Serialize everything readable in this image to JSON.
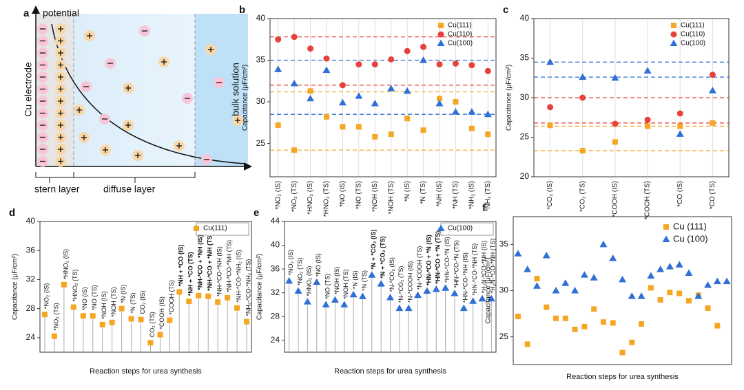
{
  "diagram": {
    "panel": "a",
    "labels": {
      "potential": "potential",
      "electrode": "Cu electrode",
      "stern": "stern layer",
      "diffuse": "diffuse layer",
      "bulk": "bulk solution"
    }
  },
  "chart_data": [
    {
      "type": "scatter",
      "panel": "b",
      "ylabel": "Capacitance (μF/cm²)",
      "ylim": [
        21,
        40
      ],
      "yticks": [
        25,
        30,
        35,
        40
      ],
      "xgrid": true,
      "legend": "upper right",
      "categories": [
        "*NO₂ (IS)",
        "*NO₂ (TS)",
        "*HNO₂ (IS)",
        "*HNO₂ (TS)",
        "*NO (IS)",
        "*NO (TS)",
        "*NOH (IS)",
        "*NOH (TS)",
        "*N (IS)",
        "*N (TS)",
        "*NH (IS)",
        "*NH (TS)",
        "*NH₂ (IS)",
        "*NH₂ (TS)"
      ],
      "series": [
        {
          "name": "Cu(111)",
          "color": "#f5a623",
          "marker": "square",
          "values": [
            27.2,
            24.2,
            31.3,
            28.2,
            27.0,
            27.0,
            25.8,
            26.1,
            28.0,
            26.6,
            30.4,
            30.0,
            26.8,
            26.1
          ]
        },
        {
          "name": "Cu(110)",
          "color": "#e8413c",
          "marker": "circle",
          "values": [
            37.5,
            37.8,
            36.4,
            35.2,
            32.0,
            34.5,
            34.5,
            35.1,
            36.1,
            36.6,
            34.5,
            34.6,
            34.4,
            33.7
          ]
        },
        {
          "name": "Cu(100)",
          "color": "#2f6fd6",
          "marker": "triangle",
          "values": [
            33.9,
            32.2,
            30.4,
            33.8,
            29.9,
            30.7,
            29.8,
            31.6,
            31.3,
            35.0,
            29.8,
            28.8,
            28.8,
            28.5
          ]
        }
      ],
      "reference_lines": [
        {
          "value": 37.8,
          "color": "#e8413c"
        },
        {
          "value": 35.0,
          "color": "#2f6fd6"
        },
        {
          "value": 32.0,
          "color": "#e8413c"
        },
        {
          "value": 31.2,
          "color": "#f5a623"
        },
        {
          "value": 28.5,
          "color": "#2f6fd6"
        },
        {
          "value": 24.2,
          "color": "#f5a623"
        }
      ]
    },
    {
      "type": "scatter",
      "panel": "c",
      "ylabel": "Capacitance (μF/cm²)",
      "ylim": [
        20,
        40
      ],
      "yticks": [
        20,
        25,
        30,
        35,
        40
      ],
      "xgrid": true,
      "legend": "upper right",
      "categories": [
        "*CO₂ (IS)",
        "*CO₂ (TS)",
        "*COOH (IS)",
        "*COOH (TS)",
        "*CO (IS)",
        "*CO (TS)"
      ],
      "series": [
        {
          "name": "Cu(111)",
          "color": "#f5a623",
          "marker": "square",
          "values": [
            26.5,
            23.3,
            24.4,
            26.4,
            26.4,
            26.8
          ]
        },
        {
          "name": "Cu(110)",
          "color": "#e8413c",
          "marker": "circle",
          "values": [
            28.8,
            30.0,
            26.7,
            27.2,
            28.0,
            32.9
          ]
        },
        {
          "name": "Cu(100)",
          "color": "#2f6fd6",
          "marker": "triangle",
          "values": [
            34.5,
            32.6,
            32.5,
            33.4,
            25.4,
            30.9
          ]
        }
      ],
      "reference_lines": [
        {
          "value": 34.5,
          "color": "#2f6fd6"
        },
        {
          "value": 32.6,
          "color": "#2f6fd6"
        },
        {
          "value": 30.0,
          "color": "#e8413c"
        },
        {
          "value": 26.8,
          "color": "#e8413c"
        },
        {
          "value": 26.4,
          "color": "#f5a623"
        },
        {
          "value": 23.3,
          "color": "#f5a623"
        }
      ]
    },
    {
      "type": "stem",
      "panel": "d",
      "ylabel": "Capacitance (μF/cm²)",
      "xlabel": "Reaction steps for urea synthesis",
      "ylim": [
        22,
        40
      ],
      "yticks": [
        24,
        28,
        32,
        36,
        40
      ],
      "legend": "upper right",
      "emphasized": [
        14,
        15,
        16,
        17
      ],
      "categories": [
        "*NO₂ (IS)",
        "*NO₂ (TS)",
        "*HNO₂ (IS)",
        "*HNO₂ (TS)",
        "*NO (IS)",
        "*NO (TS)",
        "*NOH (IS)",
        "*NOH (TS)",
        "*N (IS)",
        "*N (TS)",
        "CO₂ (IS)",
        "CO₂ (TS)",
        "*COOH (IS)",
        "*COOH (TS)",
        "*NH + *CO (IS)",
        "*NH + *CO (TS)",
        "*NH-*CO + *NH (IS)",
        "*NH-*CO + *NH (TS)",
        "*NH-*CO-*NH (IS)",
        "*NH-*CO-*NH (TS)",
        "*NH-*CO-*NH₂ (IS)",
        "*NH₂-*CO-*NH₂ (TS)"
      ],
      "series": [
        {
          "name": "Cu(111)",
          "color": "#f5a623",
          "marker": "square",
          "values": [
            27.2,
            24.2,
            31.3,
            28.2,
            27.0,
            27.0,
            25.8,
            26.1,
            28.0,
            26.6,
            26.5,
            23.3,
            24.4,
            26.4,
            30.3,
            29.0,
            29.8,
            29.7,
            28.9,
            29.5,
            28.1,
            26.2
          ]
        }
      ]
    },
    {
      "type": "stem",
      "panel": "e",
      "ylabel": "Capacitance (μF/cm²)",
      "xlabel": "Reaction steps for urea synthesis",
      "ylim": [
        22,
        44
      ],
      "yticks": [
        24,
        28,
        32,
        36,
        40,
        44
      ],
      "legend": "upper right",
      "emphasized": [
        9,
        10,
        15,
        16
      ],
      "categories": [
        "*NO₂ (IS)",
        "*NO₂ (TS)",
        "*HNO₂ (IS)",
        "*NO (IS)",
        "*NO (TS)",
        "*NOH (IS)",
        "*NOH (TS)",
        "*N (IS)",
        "*N (TS)",
        "*N + *CO₂ (IS)",
        "*N + *CO₂ (TS)",
        "*N-*CO₂ (IS)",
        "*N-*CO₂ (TS)",
        "*N-*COOH (IS)",
        "*N-*COOH (TS)",
        "*HN-*CO + *N (IS)",
        "*HN-*CO + *N (TS)",
        "*HN-*CO-*N (IS)",
        "*HN-*CO-*N (TS)",
        "*HN-*CO-*NH (IS)",
        "*HN-*CO-*NH (TS)",
        "*H₂N-*CO-*NH (IS)",
        "*H₂N-*CO-*NH (TS)"
      ],
      "series": [
        {
          "name": "Cu(100)",
          "color": "#2f6fd6",
          "marker": "triangle",
          "values": [
            34.0,
            32.3,
            30.5,
            33.8,
            30.0,
            30.8,
            30.0,
            31.7,
            31.4,
            35.0,
            33.5,
            31.2,
            29.4,
            29.4,
            31.6,
            32.3,
            32.6,
            32.8,
            31.9,
            29.4,
            30.6,
            31.0,
            31.0
          ]
        }
      ]
    },
    {
      "type": "scatter",
      "panel": "f",
      "ylabel": "Capacitance (μF/cm²)",
      "xlabel": "Reaction steps for urea synthesis",
      "ylim": [
        22,
        38
      ],
      "yticks": [
        25,
        30,
        35
      ],
      "legend": "upper right",
      "series": [
        {
          "name": "Cu (111)",
          "color": "#f5a623",
          "marker": "square",
          "values": [
            27.2,
            24.2,
            31.3,
            28.2,
            27.0,
            27.0,
            25.8,
            26.1,
            28.0,
            26.6,
            26.5,
            23.3,
            24.4,
            26.4,
            30.3,
            29.0,
            29.8,
            29.7,
            28.9,
            29.5,
            28.1,
            26.2
          ]
        },
        {
          "name": "Cu (100)",
          "color": "#2f6fd6",
          "marker": "triangle",
          "values": [
            34.0,
            32.3,
            30.5,
            33.8,
            30.0,
            30.8,
            30.0,
            31.7,
            31.4,
            35.0,
            33.5,
            31.2,
            29.4,
            29.4,
            31.6,
            32.3,
            32.6,
            32.8,
            31.9,
            29.4,
            30.6,
            31.0,
            31.0
          ]
        }
      ]
    }
  ]
}
